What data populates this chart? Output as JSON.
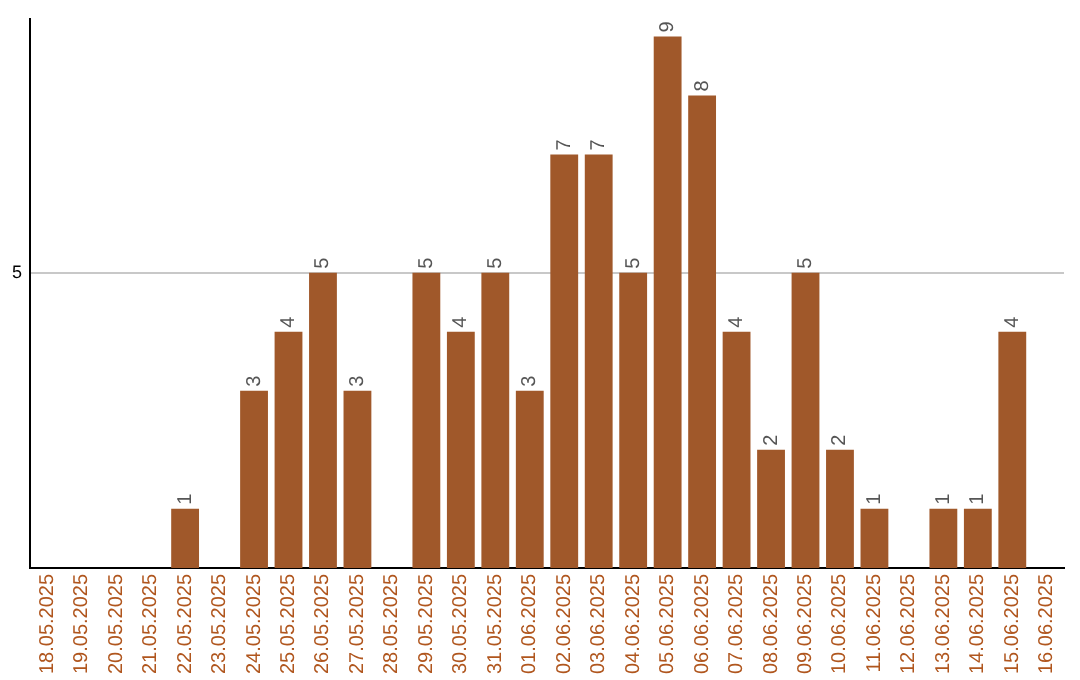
{
  "chart_data": {
    "type": "bar",
    "categories": [
      "18.05.2025",
      "19.05.2025",
      "20.05.2025",
      "21.05.2025",
      "22.05.2025",
      "23.05.2025",
      "24.05.2025",
      "25.05.2025",
      "26.05.2025",
      "27.05.2025",
      "28.05.2025",
      "29.05.2025",
      "30.05.2025",
      "31.05.2025",
      "01.06.2025",
      "02.06.2025",
      "03.06.2025",
      "04.06.2025",
      "05.06.2025",
      "06.06.2025",
      "07.06.2025",
      "08.06.2025",
      "09.06.2025",
      "10.06.2025",
      "11.06.2025",
      "12.06.2025",
      "13.06.2025",
      "14.06.2025",
      "15.06.2025",
      "16.06.2025"
    ],
    "values": [
      null,
      null,
      null,
      null,
      1,
      null,
      3,
      4,
      5,
      3,
      null,
      5,
      4,
      5,
      3,
      7,
      7,
      5,
      9,
      8,
      4,
      2,
      5,
      2,
      1,
      null,
      1,
      1,
      4,
      null
    ],
    "color": "#a0582a",
    "ylim": [
      0,
      9.3
    ],
    "yticks": [
      5
    ],
    "grid": "y",
    "data_labels": true,
    "legend": false
  }
}
